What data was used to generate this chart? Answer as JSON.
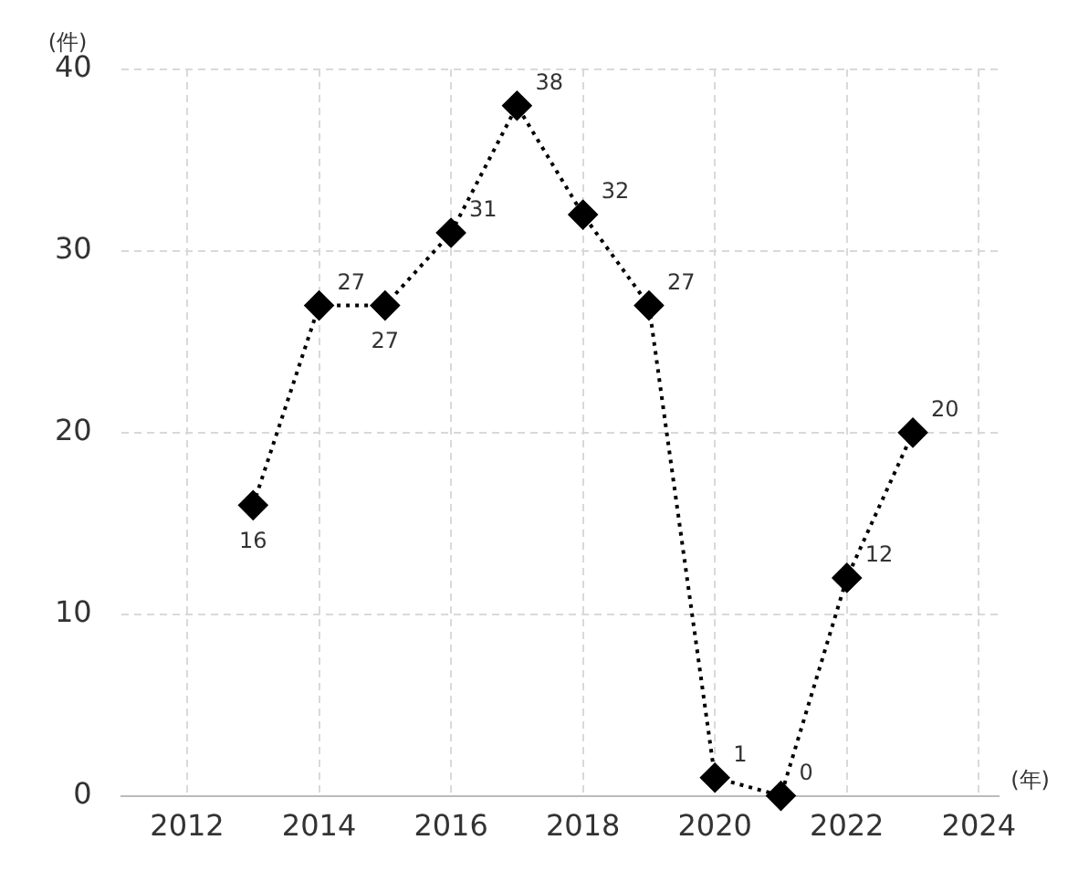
{
  "chart_data": {
    "type": "line",
    "xlabel": "(年)",
    "ylabel": "(件)",
    "x": [
      2013,
      2014,
      2015,
      2016,
      2017,
      2018,
      2019,
      2020,
      2021,
      2022,
      2023
    ],
    "series": [
      {
        "color": "#000000",
        "values": [
          16,
          27,
          27,
          31,
          38,
          32,
          27,
          1,
          0,
          12,
          20
        ]
      }
    ],
    "xlim": [
      2011,
      2024.3
    ],
    "xticks": [
      2012,
      2014,
      2016,
      2018,
      2020,
      2022,
      2024
    ],
    "ylim": [
      0,
      40
    ],
    "yticks": [
      0,
      10,
      20,
      30,
      40
    ],
    "grid": true,
    "legend": false,
    "marker": "diamond",
    "line_style": "dotted",
    "data_labels": true
  }
}
